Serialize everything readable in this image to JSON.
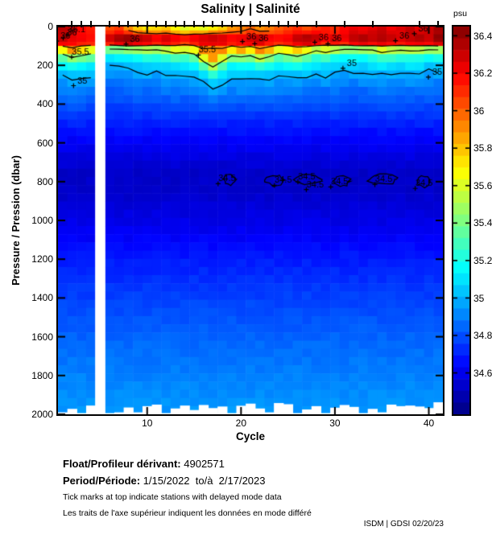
{
  "title": "Salinity | Salinité",
  "colorbar": {
    "unit_label": "psu",
    "ticks": [
      36.4,
      36.2,
      36,
      35.8,
      35.6,
      35.4,
      35.2,
      35,
      34.8,
      34.6
    ],
    "scale_min": 34.38,
    "scale_max": 36.45
  },
  "axes": {
    "x_label": "Cycle",
    "y_label": "Pressure / Pression (dbar)",
    "x_ticks": [
      10,
      20,
      30,
      40
    ],
    "y_ticks": [
      0,
      200,
      400,
      600,
      800,
      1000,
      1200,
      1400,
      1600,
      1800,
      2000
    ]
  },
  "footer": {
    "float_label": "Float/Profileur dérivant:",
    "float_id": "4902571",
    "period_label": "Period/Période:",
    "period_value": "1/15/2022  to/à  2/17/2023",
    "note_en": "Tick marks at top indicate stations with delayed mode data",
    "note_fr": "Les traits de l'axe supérieur indiquent les données en mode différé",
    "credit": "ISDM | GDSI 02/20/23"
  },
  "chart_data": {
    "type": "heatmap",
    "title": "Salinity | Salinité",
    "xlabel": "Cycle",
    "ylabel": "Pressure / Pression (dbar)",
    "unit": "psu",
    "colormap": "jet",
    "color_scale_psu": [
      34.38,
      36.45
    ],
    "x_range": [
      0.5,
      41.5
    ],
    "y_range": [
      0,
      2000
    ],
    "cycles": 41,
    "missing_cycles": [
      5
    ],
    "surface_salinity": [
      36.32,
      36.3,
      36.18,
      36.12,
      null,
      36.02,
      36.08,
      35.92,
      35.8,
      35.72,
      35.76,
      35.8,
      35.68,
      35.6,
      35.66,
      35.62,
      35.7,
      35.78,
      35.88,
      35.95,
      36.0,
      35.9,
      35.95,
      36.02,
      36.06,
      36.1,
      36.05,
      36.1,
      36.15,
      36.1,
      36.2,
      36.24,
      36.2,
      36.26,
      36.3,
      36.22,
      36.26,
      36.3,
      36.26,
      36.3,
      36.36
    ],
    "subsurface_max_salinity": [
      36.3,
      36.24,
      36.2,
      36.18,
      null,
      36.26,
      36.36,
      36.4,
      36.34,
      36.28,
      36.2,
      36.26,
      36.2,
      36.14,
      36.2,
      36.26,
      36.3,
      36.26,
      36.2,
      36.22,
      36.26,
      36.3,
      36.2,
      36.16,
      36.2,
      36.3,
      36.34,
      36.3,
      36.2,
      36.26,
      36.22,
      36.3,
      36.34,
      36.3,
      36.34,
      36.3,
      36.26,
      36.3,
      36.34,
      36.3,
      36.4
    ],
    "thermocline_shift_dbar": [
      10,
      25,
      15,
      5,
      null,
      -40,
      -45,
      -30,
      -20,
      -15,
      -20,
      -10,
      0,
      -5,
      5,
      40,
      70,
      40,
      15,
      25,
      15,
      30,
      20,
      0,
      10,
      20,
      5,
      -10,
      -5,
      -15,
      -30,
      -25,
      -20,
      -15,
      -5,
      -10,
      -15,
      -10,
      -15,
      -20,
      -25
    ],
    "depth_profile": [
      [
        100,
        35.9
      ],
      [
        110,
        35.72
      ],
      [
        140,
        35.45
      ],
      [
        180,
        35.2
      ],
      [
        230,
        35.04
      ],
      [
        280,
        34.95
      ],
      [
        350,
        34.86
      ],
      [
        450,
        34.75
      ],
      [
        550,
        34.66
      ],
      [
        650,
        34.59
      ],
      [
        750,
        34.53
      ],
      [
        850,
        34.53
      ],
      [
        950,
        34.57
      ],
      [
        1050,
        34.61
      ],
      [
        1200,
        34.69
      ],
      [
        1400,
        34.77
      ],
      [
        1600,
        34.84
      ],
      [
        1800,
        34.9
      ],
      [
        2000,
        34.95
      ]
    ],
    "contour_levels": [
      34.5,
      35,
      35.5,
      36
    ],
    "contour_labels": [
      [
        "36",
        1.3,
        46
      ],
      [
        "36.1",
        2.5,
        14
      ],
      [
        "36",
        2.0,
        30
      ],
      [
        "35.5",
        2.9,
        128
      ],
      [
        "35",
        3.1,
        276
      ],
      [
        "36",
        8.7,
        62
      ],
      [
        "35.5",
        16.4,
        118
      ],
      [
        "36",
        21.1,
        48
      ],
      [
        "36",
        22.4,
        60
      ],
      [
        "36",
        28.8,
        52
      ],
      [
        "36",
        30.2,
        60
      ],
      [
        "35",
        31.8,
        186
      ],
      [
        "36",
        37.4,
        44
      ],
      [
        "36",
        39.4,
        8
      ],
      [
        "35",
        40.9,
        232
      ],
      [
        "34.5",
        18.5,
        782
      ],
      [
        "34.5",
        24.5,
        790
      ],
      [
        "34.5",
        27.0,
        772
      ],
      [
        "34.5",
        27.9,
        812
      ],
      [
        "34.5",
        30.5,
        798
      ],
      [
        "34.5",
        35.2,
        786
      ],
      [
        "34.5",
        39.5,
        806
      ]
    ],
    "deep_34_5_contours": [
      {
        "from": 18.2,
        "to": 19.4,
        "depth": 788
      },
      {
        "from": 22.6,
        "to": 24.6,
        "depth": 792
      },
      {
        "from": 25.6,
        "to": 28.6,
        "depth": 790
      },
      {
        "from": 29.9,
        "to": 31.6,
        "depth": 798
      },
      {
        "from": 33.6,
        "to": 36.6,
        "depth": 788
      },
      {
        "from": 38.6,
        "to": 40.2,
        "depth": 800
      }
    ],
    "delayed_mode_cycles": [
      2,
      3,
      4,
      6,
      7,
      8,
      9,
      10,
      11,
      12,
      13,
      14,
      15,
      16,
      17,
      18,
      19,
      20,
      21,
      22,
      23,
      24,
      25,
      26,
      28,
      31,
      34,
      39,
      41
    ],
    "max_depth_dbar": [
      1990,
      1972,
      1994,
      1955,
      null,
      1994,
      1990,
      1965,
      1990,
      1958,
      1950,
      1994,
      1970,
      1955,
      1978,
      1952,
      1968,
      1960,
      1994,
      1956,
      1945,
      1970,
      1990,
      1942,
      1948,
      1994,
      1975,
      1958,
      1994,
      1966,
      1952,
      1962,
      1994,
      1972,
      1990,
      1950,
      1958,
      1955,
      1960,
      1968,
      1938
    ]
  }
}
